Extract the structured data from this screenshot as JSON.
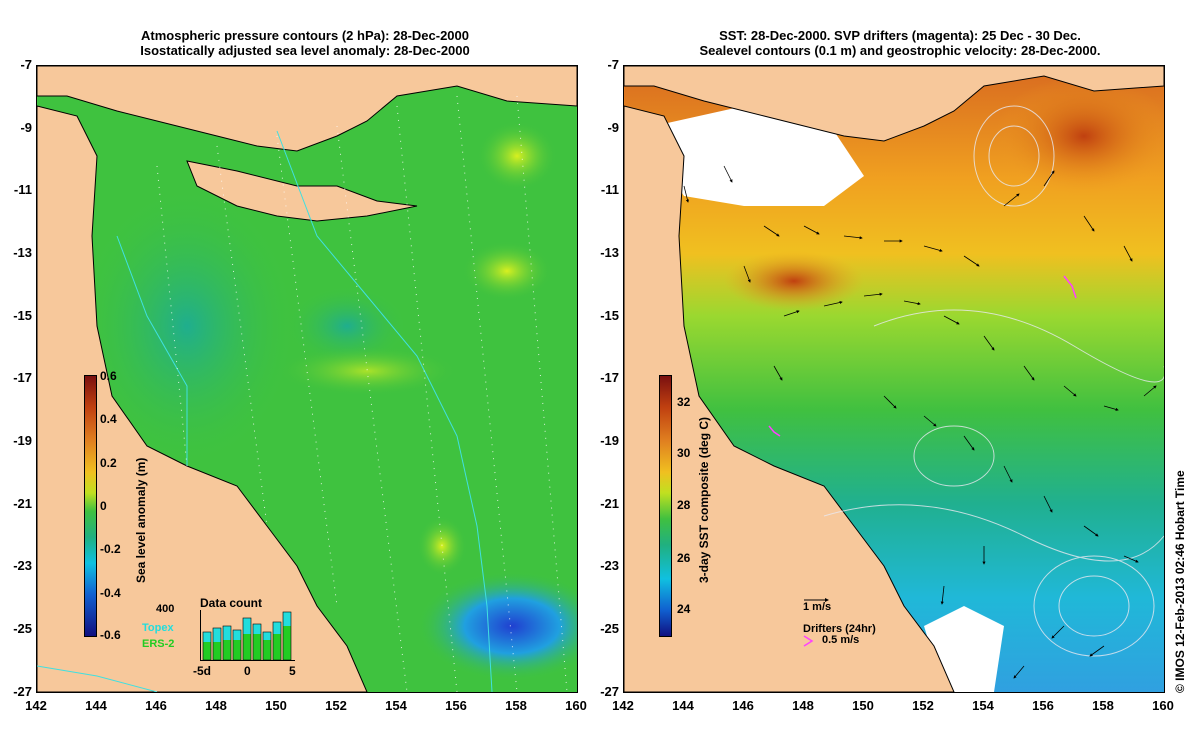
{
  "left": {
    "title_line1": "Atmospheric pressure contours (2 hPa): 28-Dec-2000",
    "title_line2": "Isostatically adjusted sea level anomaly: 28-Dec-2000",
    "y_ticks": [
      "-7",
      "-9",
      "-11",
      "-13",
      "-15",
      "-17",
      "-19",
      "-21",
      "-23",
      "-25",
      "-27"
    ],
    "x_ticks": [
      "142",
      "144",
      "146",
      "148",
      "150",
      "152",
      "154",
      "156",
      "158",
      "160"
    ],
    "colorbar": {
      "label": "Sea level anomaly (m)",
      "ticks": [
        "0.6",
        "0.4",
        "0.2",
        "0",
        "-0.2",
        "-0.4",
        "-0.6"
      ]
    },
    "data_count": {
      "title": "Data count",
      "y_label": "400",
      "legend_topex": "Topex",
      "legend_ers": "ERS-2",
      "x_ticks": [
        "-5d",
        "0",
        "5"
      ],
      "topex_color": "#22dddd",
      "ers_color": "#22cc22"
    }
  },
  "right": {
    "title_line1": "SST: 28-Dec-2000. SVP drifters (magenta): 25 Dec - 30 Dec.",
    "title_line2": "Sealevel contours (0.1 m) and geostrophic velocity: 28-Dec-2000.",
    "y_ticks": [
      "-7",
      "-9",
      "-11",
      "-13",
      "-15",
      "-17",
      "-19",
      "-21",
      "-23",
      "-25",
      "-27"
    ],
    "x_ticks": [
      "142",
      "144",
      "146",
      "148",
      "150",
      "152",
      "154",
      "156",
      "158",
      "160"
    ],
    "colorbar": {
      "label": "3-day SST composite (deg C)",
      "ticks": [
        "32",
        "30",
        "28",
        "26",
        "24"
      ]
    },
    "velocity_key": "1 m/s",
    "drifters_label": "Drifters (24hr)",
    "drifter_speed": "0.5 m/s"
  },
  "credit": "© IMOS 12-Feb-2013 02:46 Hobart Time",
  "colors": {
    "land": "#f7c89b",
    "sea_left": "#3fc23f",
    "sea_right_warm": "#f0a020",
    "sea_right_cool": "#2ab7c2"
  }
}
